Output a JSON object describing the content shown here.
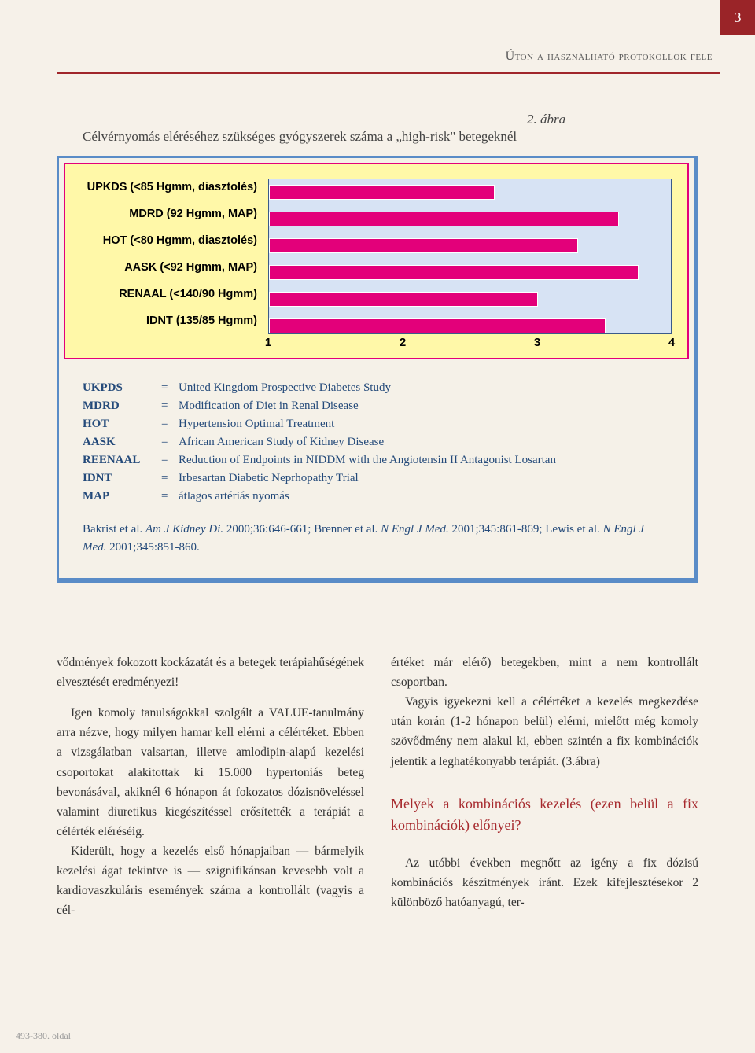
{
  "page_number": "3",
  "header": "Úton a használható protokollok felé",
  "figure": {
    "label": "2. ábra",
    "title": "Célvérnyomás eléréséhez szükséges gyógyszerek száma a „high-risk\" betegeknél",
    "type": "horizontal-bar",
    "background_color": "#fff8a8",
    "panel_border_color": "#e3007a",
    "chart_bg": "#d7e3f4",
    "bar_color": "#e3007a",
    "card_border": "#5a8cc7",
    "x_min": 1,
    "x_max": 4,
    "x_ticks": [
      "1",
      "2",
      "3",
      "4"
    ],
    "categories": [
      {
        "label": "UPKDS (<85 Hgmm, diasztolés)",
        "value": 2.68
      },
      {
        "label": "MDRD (92 Hgmm, MAP)",
        "value": 3.6
      },
      {
        "label": "HOT (<80 Hgmm, diasztolés)",
        "value": 3.3
      },
      {
        "label": "AASK (<92 Hgmm, MAP)",
        "value": 3.75
      },
      {
        "label": "RENAAL (<140/90 Hgmm)",
        "value": 3.0
      },
      {
        "label": "IDNT (135/85 Hgmm)",
        "value": 3.5
      }
    ],
    "legend": [
      {
        "abbr": "UKPDS",
        "def": "United Kingdom Prospective Diabetes Study"
      },
      {
        "abbr": "MDRD",
        "def": "Modification of Diet in Renal Disease"
      },
      {
        "abbr": "HOT",
        "def": "Hypertension Optimal Treatment"
      },
      {
        "abbr": "AASK",
        "def": "African American Study of Kidney Disease"
      },
      {
        "abbr": "REENAAL",
        "def": "Reduction of Endpoints in NIDDM with the Angiotensin II Antagonist Losartan"
      },
      {
        "abbr": "IDNT",
        "def": "Irbesartan Diabetic Neprhopathy Trial"
      },
      {
        "abbr": "MAP",
        "def": "átlagos artériás nyomás"
      }
    ],
    "citation_parts": {
      "a": "Bakrist et al. ",
      "b": "Am J Kidney Di.",
      "c": " 2000;36:646-661; Brenner et al. ",
      "d": "N Engl J Med.",
      "e": " 2001;345:861-869; Lewis et al. ",
      "f": "N Engl J Med.",
      "g": " 2001;345:851-860."
    }
  },
  "body": {
    "left": {
      "p1": "vődmények fokozott kockázatát és a betegek terápiahűségének elvesztését eredményezi!",
      "p2": "Igen komoly tanulságokkal szolgált a VALUE-tanulmány arra nézve, hogy milyen hamar kell elérni a célértéket. Ebben a vizsgálatban valsartan, illetve amlodipin-alapú kezelési csoportokat alakítottak ki 15.000 hypertoniás beteg bevonásával, akiknél 6 hónapon át fokozatos dózisnöveléssel valamint diuretikus kiegészítéssel erősítették a terápiát a célérték eléréséig.",
      "p3": "Kiderült, hogy a kezelés első hónapjaiban — bármelyik kezelési ágat tekintve is — szignifikánsan kevesebb volt a kardiovaszkuláris események száma a kontrollált (vagyis a cél-"
    },
    "right": {
      "p1": "értéket már elérő) betegekben, mint a nem kontrollált csoportban.",
      "p2": "Vagyis igyekezni kell a célértéket a kezelés megkezdése után korán (1-2 hónapon belül) elérni, mielőtt még komoly szövődmény nem alakul ki, ebben szintén a fix kombinációk jelentik a leghatékonyabb terápiát. (3.ábra)",
      "h": "Melyek a kombinációs kezelés (ezen belül a fix kombinációk) előnyei?",
      "p3": "Az utóbbi években megnőtt az igény a fix dózisú kombinációs készítmények iránt. Ezek kifejlesztésekor 2 különböző hatóanyagú, ter-"
    }
  },
  "footer": "493-380. oldal"
}
